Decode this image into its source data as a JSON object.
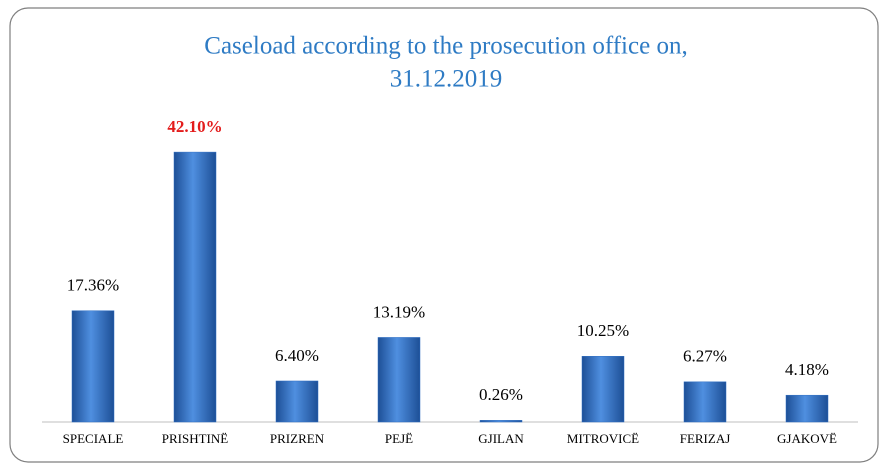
{
  "chart_data": {
    "type": "bar",
    "title": [
      "Caseload according to the prosecution office on,",
      "31.12.2019"
    ],
    "categories": [
      "SPECIALE",
      "PRISHTINË",
      "PRIZREN",
      "PEJË",
      "GJILAN",
      "MITROVICË",
      "FERIZAJ",
      "GJAKOVË"
    ],
    "values": [
      17.36,
      42.1,
      6.4,
      13.19,
      0.26,
      10.25,
      6.27,
      4.18
    ],
    "value_labels": [
      "17.36%",
      "42.10%",
      "6.40%",
      "13.19%",
      "0.26%",
      "10.25%",
      "6.27%",
      "4.18%"
    ],
    "value_label_colors": [
      "#000000",
      "#e31b1b",
      "#000000",
      "#000000",
      "#000000",
      "#000000",
      "#000000",
      "#000000"
    ],
    "color": "#2f6fc4",
    "ylim": [
      0,
      45
    ]
  }
}
